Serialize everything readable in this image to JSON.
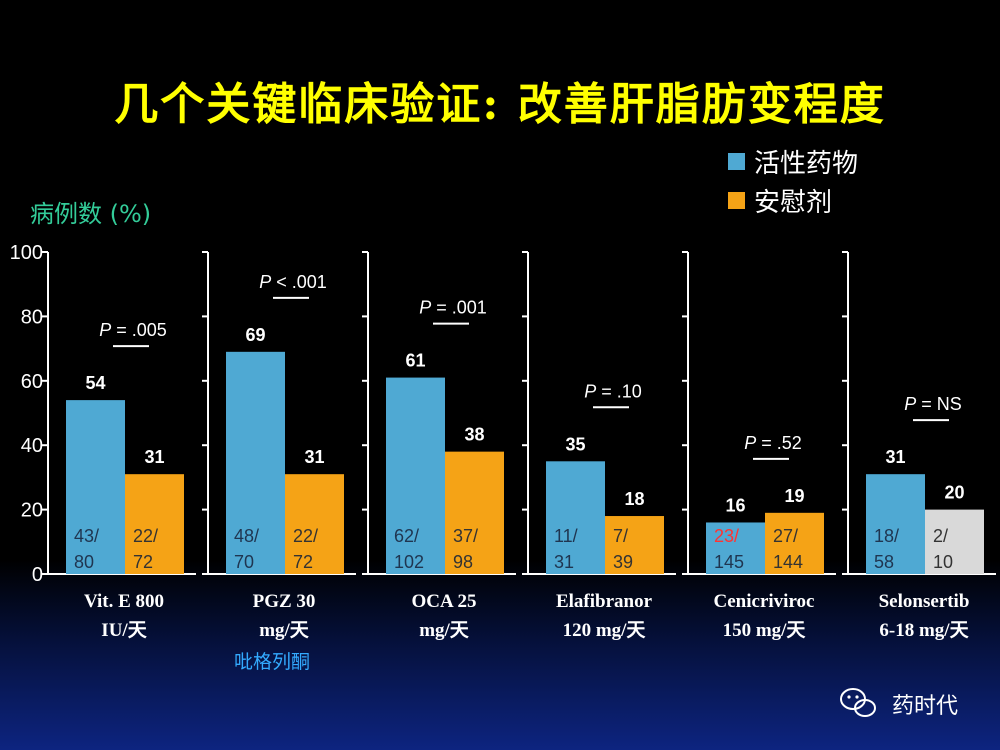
{
  "title": "几个关键临床验证: 改善肝脂肪变程度",
  "watermark": "药时代",
  "colors": {
    "active": "#4fa9d3",
    "placebo": "#f5a316",
    "placebo_ns": "#d9d9d9",
    "title": "#ffff00",
    "ylabel": "#33cc99",
    "red": "#ff3333",
    "note": "#33aaff"
  },
  "chart_data": {
    "type": "bar",
    "ylabel": "病例数 (%)",
    "ylim": [
      0,
      100
    ],
    "yticks": [
      "0",
      "20",
      "40",
      "60",
      "80",
      "100"
    ],
    "legend": {
      "position": "top-right",
      "items": [
        "活性药物",
        "安慰剂"
      ]
    },
    "groups": [
      {
        "category": [
          "Vit. E 800",
          "IU/天"
        ],
        "note": "",
        "active": 54,
        "placebo": 31,
        "pvalue": [
          "P",
          " = .005"
        ],
        "active_n": [
          "43/",
          "80"
        ],
        "placebo_n": [
          "22/",
          "72"
        ],
        "placebo_ns": false,
        "active_n_red": false
      },
      {
        "category": [
          "PGZ 30",
          "mg/天"
        ],
        "note": "吡格列酮",
        "active": 69,
        "placebo": 31,
        "pvalue": [
          "P",
          " < .001"
        ],
        "active_n": [
          "48/",
          "70"
        ],
        "placebo_n": [
          "22/",
          "72"
        ],
        "placebo_ns": false,
        "active_n_red": false
      },
      {
        "category": [
          "OCA 25",
          "mg/天"
        ],
        "note": "",
        "active": 61,
        "placebo": 38,
        "pvalue": [
          "P",
          " = .001"
        ],
        "active_n": [
          "62/",
          "102"
        ],
        "placebo_n": [
          "37/",
          "98"
        ],
        "placebo_ns": false,
        "active_n_red": false
      },
      {
        "category": [
          "Elafibranor",
          "120 mg/天"
        ],
        "note": "",
        "active": 35,
        "placebo": 18,
        "pvalue": [
          "P",
          " = .10"
        ],
        "active_n": [
          "11/",
          "31"
        ],
        "placebo_n": [
          "7/",
          "39"
        ],
        "placebo_ns": false,
        "active_n_red": false
      },
      {
        "category": [
          "Cenicriviroc",
          "150 mg/天"
        ],
        "note": "",
        "active": 16,
        "placebo": 19,
        "pvalue": [
          "P",
          " = .52"
        ],
        "active_n": [
          "23/",
          "145"
        ],
        "placebo_n": [
          "27/",
          "144"
        ],
        "placebo_ns": false,
        "active_n_red": true
      },
      {
        "category": [
          "Selonsertib",
          "6-18 mg/天"
        ],
        "note": "",
        "active": 31,
        "placebo": 20,
        "pvalue": [
          "P",
          " = NS"
        ],
        "active_n": [
          "18/",
          "58"
        ],
        "placebo_n": [
          "2/",
          "10"
        ],
        "placebo_ns": true,
        "active_n_red": false
      }
    ]
  }
}
